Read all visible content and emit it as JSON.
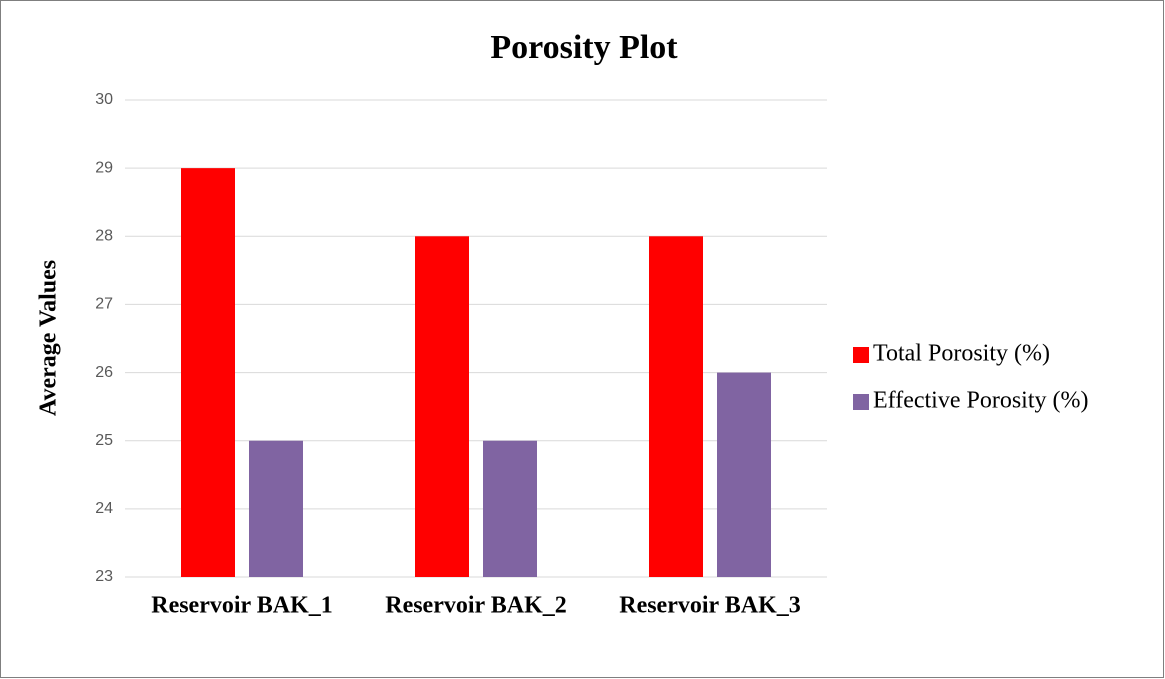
{
  "chart_data": {
    "type": "bar",
    "title": "Porosity Plot",
    "y_label": "Average Values",
    "categories": [
      "Reservoir BAK_1",
      "Reservoir BAK_2",
      "Reservoir BAK_3"
    ],
    "series": [
      {
        "name": "Total Porosity (%)",
        "color": "#ff0000",
        "values": [
          29,
          28,
          28
        ]
      },
      {
        "name": "Effective Porosity (%)",
        "color": "#8064a2",
        "values": [
          25,
          25,
          26
        ]
      }
    ],
    "ylim": [
      23,
      30
    ],
    "yticks": [
      23,
      24,
      25,
      26,
      27,
      28,
      29,
      30
    ],
    "grid": true,
    "legend": "right"
  }
}
